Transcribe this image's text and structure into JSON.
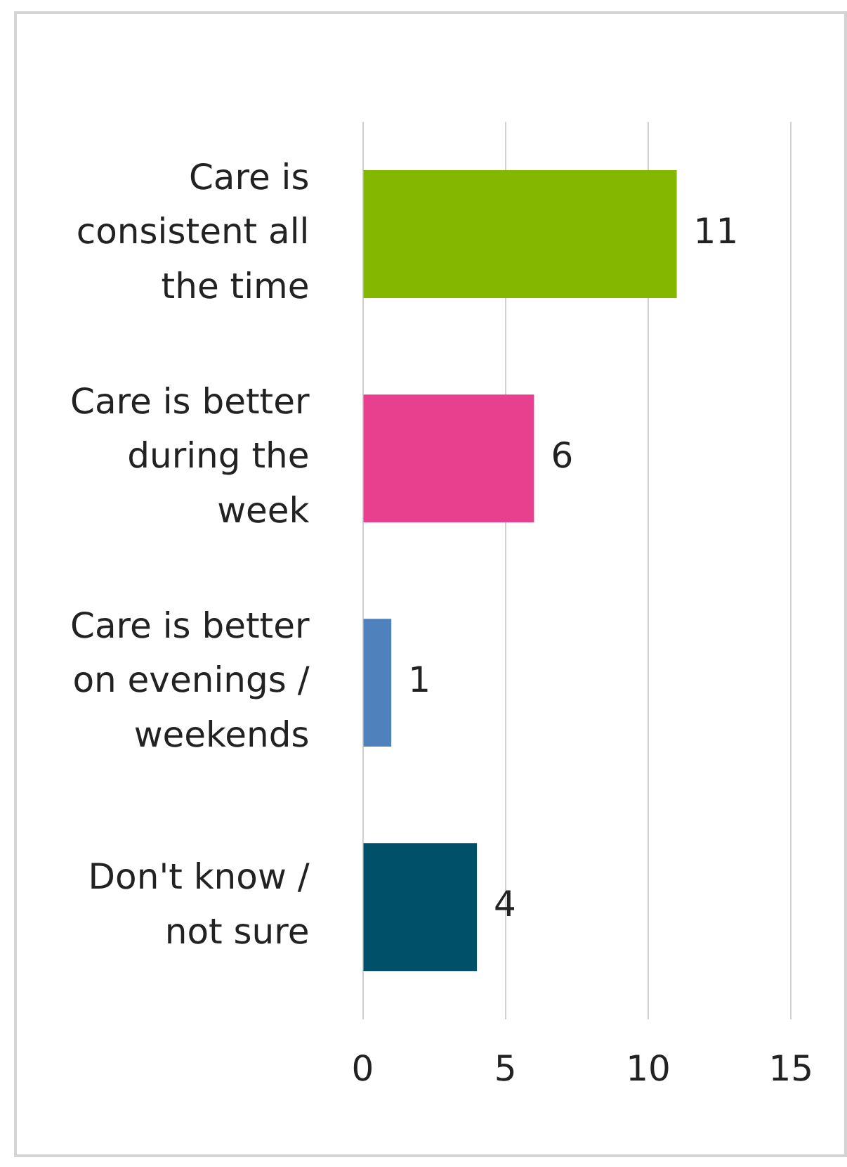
{
  "chart_data": {
    "type": "bar",
    "orientation": "horizontal",
    "categories": [
      "Care is consistent all the time",
      "Care is better during the week",
      "Care is better on evenings / weekends",
      "Don't know / not sure"
    ],
    "values": [
      11,
      6,
      1,
      4
    ],
    "colors": [
      "#84b800",
      "#e8408f",
      "#4f81bd",
      "#00506a"
    ],
    "xlim": [
      0,
      15
    ],
    "xticks": [
      0,
      5,
      10,
      15
    ],
    "grid": "x",
    "data_labels": true
  }
}
